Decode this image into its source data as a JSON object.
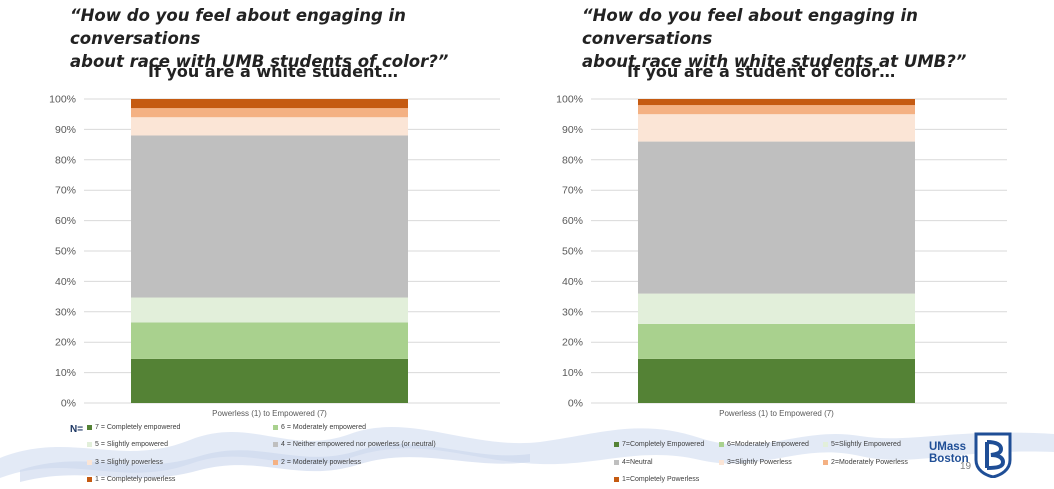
{
  "slide": {
    "left_question": "“How do you feel about engaging in conversations\nabout race with UMB students of color?”",
    "right_question": "“How do you feel about engaging in conversations\nabout race with white students at UMB?”",
    "left_subtitle": "If you are a white student…",
    "right_subtitle": "If you are a student of color…",
    "n_label": "N=",
    "page_number": "19",
    "logo_line1": "UMass",
    "logo_line2": "Boston"
  },
  "colors": {
    "c7": "#548235",
    "c6": "#a9d18e",
    "c5": "#e2efda",
    "c4": "#bfbfbf",
    "c3": "#fbe5d6",
    "c2": "#f4b183",
    "c1": "#c55a11",
    "grid": "#d9d9d9",
    "wave": "#dae3f3",
    "brand": "#1f4e96"
  },
  "chart_data": [
    {
      "type": "bar",
      "stacked": true,
      "categories": [
        ""
      ],
      "xlabel": "Powerless (1) to Empowered (7)",
      "ylabel": "",
      "ylim": [
        0,
        100
      ],
      "yticks": [
        "0%",
        "10%",
        "20%",
        "30%",
        "40%",
        "50%",
        "60%",
        "70%",
        "80%",
        "90%",
        "100%"
      ],
      "grid": true,
      "legend_position": "bottom",
      "series": [
        {
          "name": "7 = Completely empowered",
          "color_key": "c7",
          "values": [
            14.5
          ]
        },
        {
          "name": "6 = Moderately empowered",
          "color_key": "c6",
          "values": [
            12
          ]
        },
        {
          "name": "5 = Slightly empowered",
          "color_key": "c5",
          "values": [
            8.2
          ]
        },
        {
          "name": "4 = Neither empowered nor powerless (or neutral)",
          "color_key": "c4",
          "values": [
            53.3
          ]
        },
        {
          "name": "3 = Slightly powerless",
          "color_key": "c3",
          "values": [
            6
          ]
        },
        {
          "name": "2 = Moderately powerless",
          "color_key": "c2",
          "values": [
            3
          ]
        },
        {
          "name": "1 = Completely powerless",
          "color_key": "c1",
          "values": [
            3
          ]
        }
      ]
    },
    {
      "type": "bar",
      "stacked": true,
      "categories": [
        ""
      ],
      "xlabel": "Powerless (1) to Empowered (7)",
      "ylabel": "",
      "ylim": [
        0,
        100
      ],
      "yticks": [
        "0%",
        "10%",
        "20%",
        "30%",
        "40%",
        "50%",
        "60%",
        "70%",
        "80%",
        "90%",
        "100%"
      ],
      "grid": true,
      "legend_position": "bottom",
      "series": [
        {
          "name": "7=Completely Empowered",
          "color_key": "c7",
          "values": [
            14.5
          ]
        },
        {
          "name": "6=Moderately Empowered",
          "color_key": "c6",
          "values": [
            11.5
          ]
        },
        {
          "name": "5=Slightly Empowered",
          "color_key": "c5",
          "values": [
            10
          ]
        },
        {
          "name": "4=Neutral",
          "color_key": "c4",
          "values": [
            50
          ]
        },
        {
          "name": "3=Slightly Powerless",
          "color_key": "c3",
          "values": [
            9
          ]
        },
        {
          "name": "2=Moderately Powerless",
          "color_key": "c2",
          "values": [
            3
          ]
        },
        {
          "name": "1=Completely Powerless",
          "color_key": "c1",
          "values": [
            2
          ]
        }
      ]
    }
  ]
}
